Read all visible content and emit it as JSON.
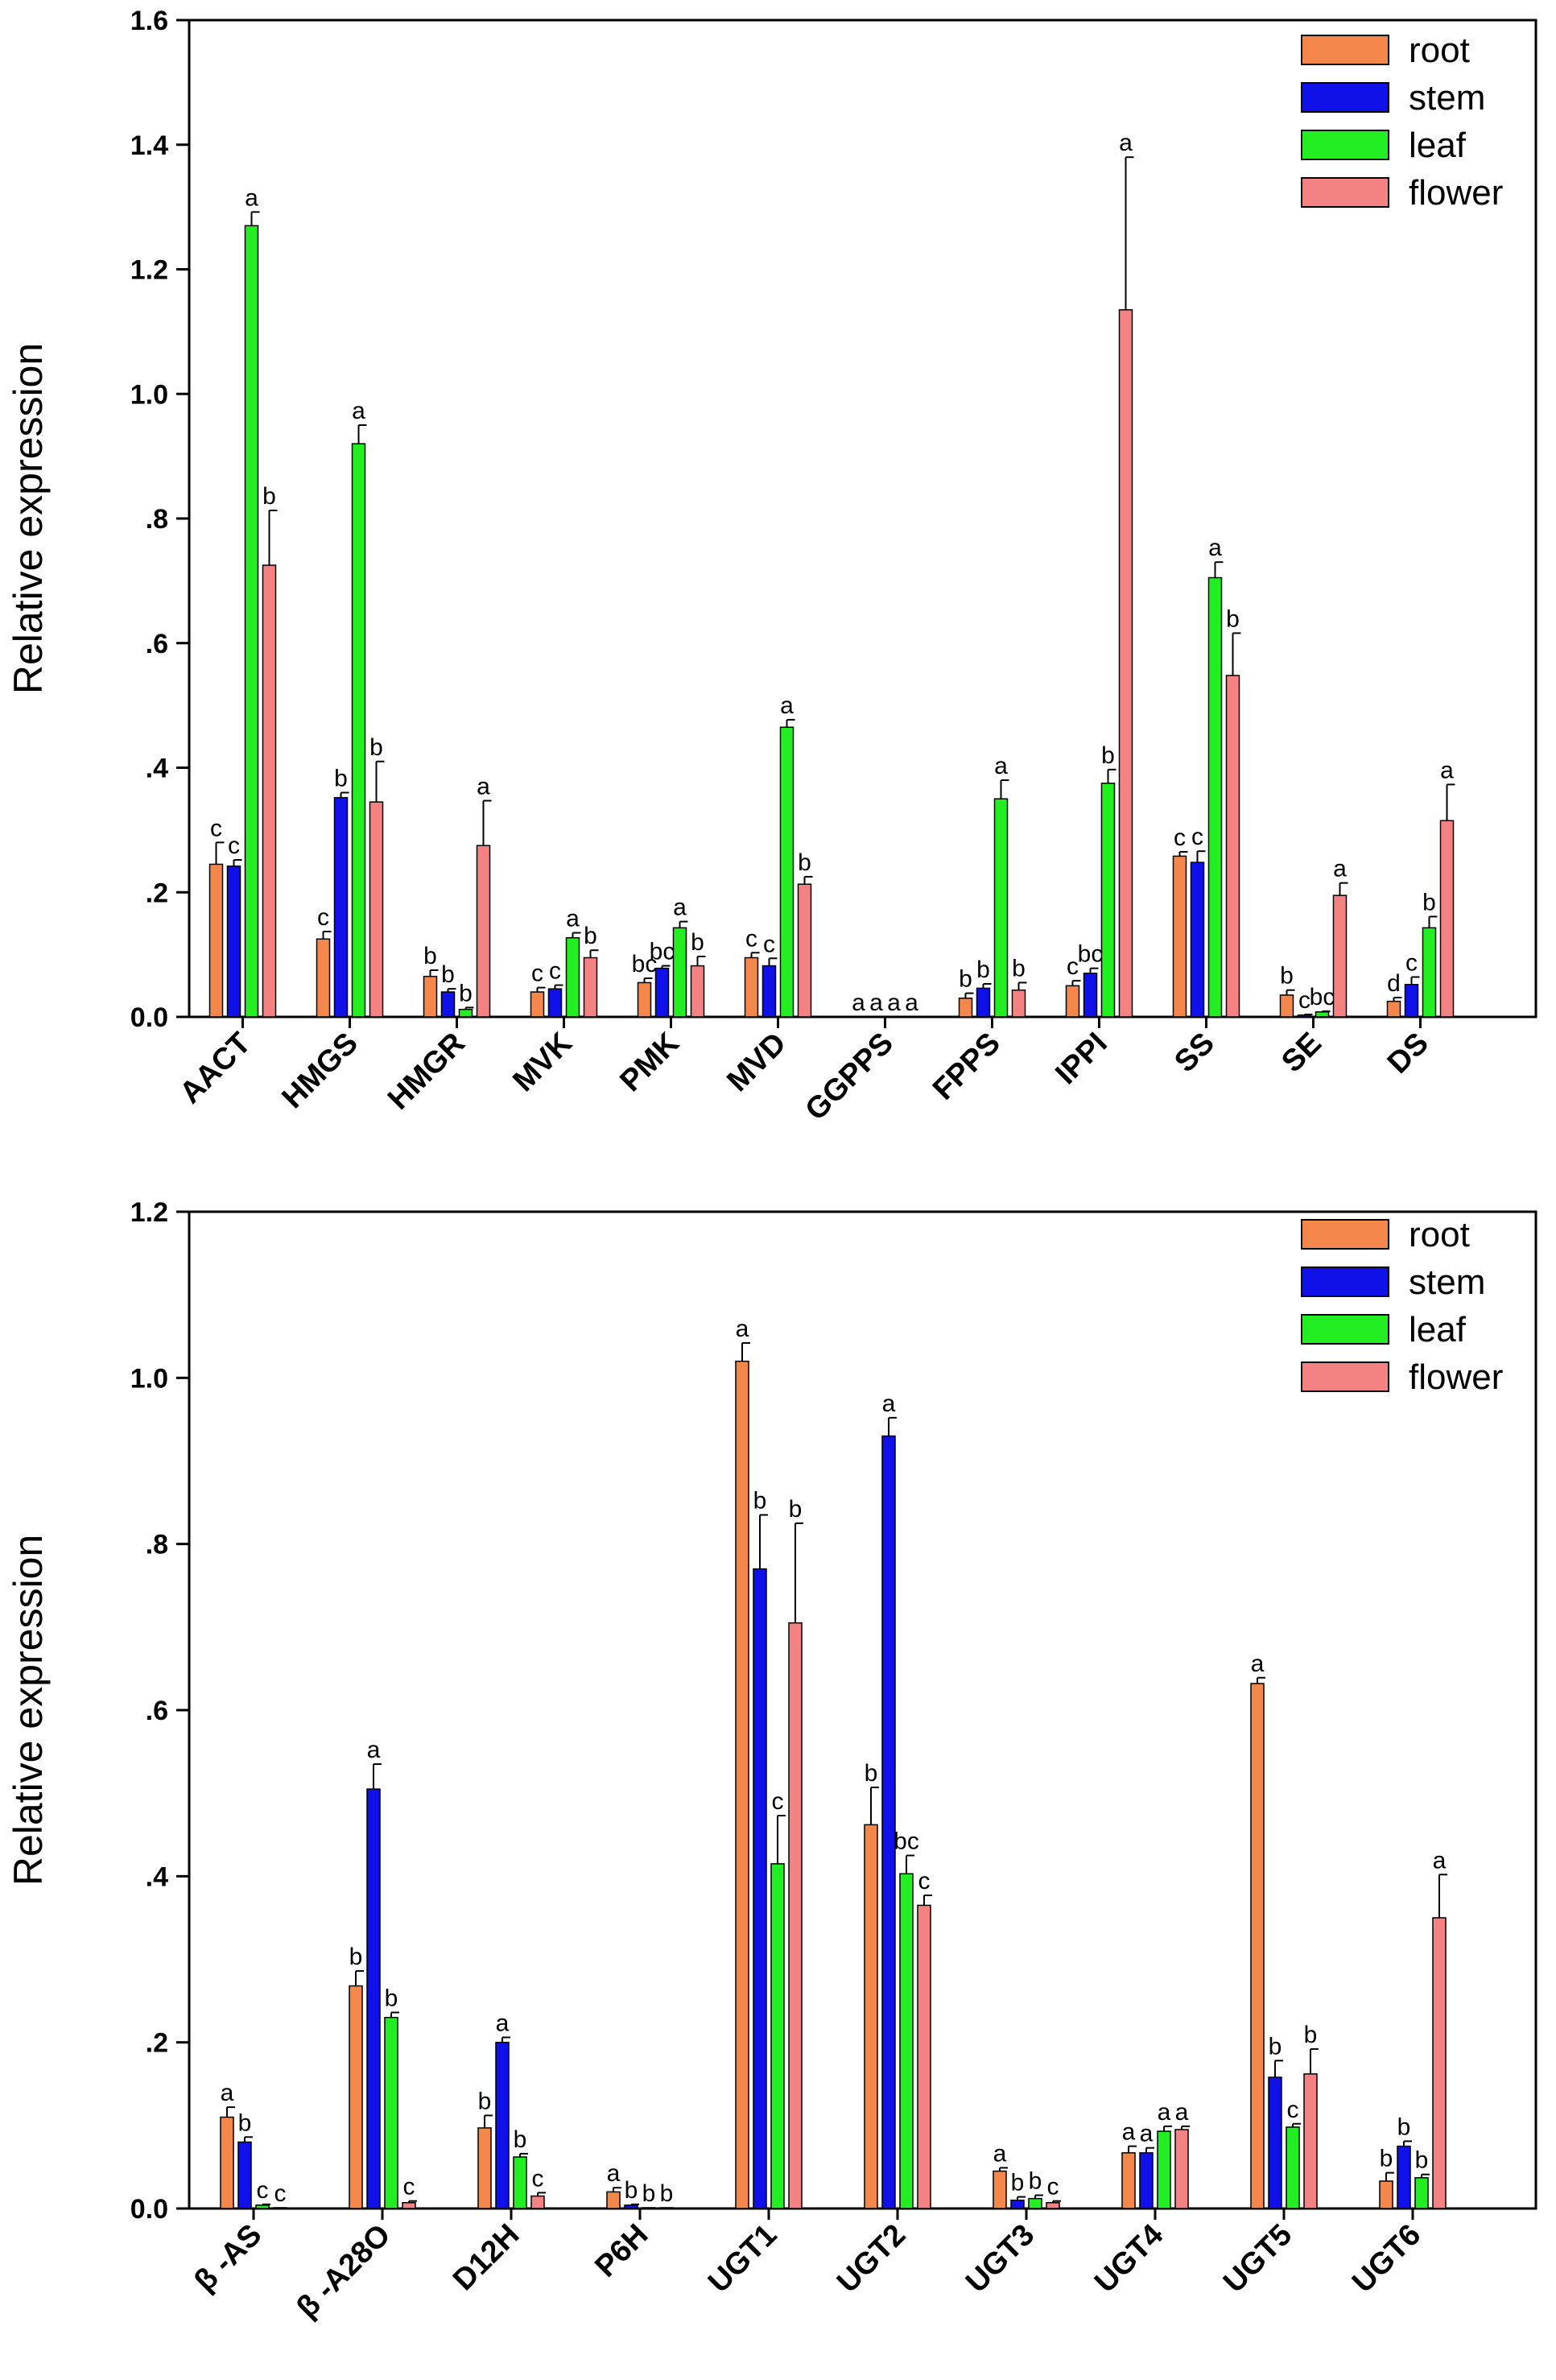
{
  "chart_data": [
    {
      "type": "bar",
      "title": "",
      "xlabel": "",
      "ylabel": "Relative expression",
      "ylim": [
        0,
        1.6
      ],
      "yticks": [
        0.0,
        0.2,
        0.4,
        0.6,
        0.8,
        1.0,
        1.2,
        1.4,
        1.6
      ],
      "ytick_labels": [
        "0.0",
        ".2",
        ".4",
        ".6",
        ".8",
        "1.0",
        "1.2",
        "1.4",
        "1.6"
      ],
      "legend_position": "top-right",
      "categories": [
        "AACT",
        "HMGS",
        "HMGR",
        "MVK",
        "PMK",
        "MVD",
        "GGPPS",
        "FPPS",
        "IPPI",
        "SS",
        "SE",
        "DS"
      ],
      "series": [
        {
          "name": "root",
          "color": "#F4874B",
          "values": [
            0.245,
            0.125,
            0.065,
            0.04,
            0.055,
            0.095,
            0.0,
            0.03,
            0.05,
            0.258,
            0.035,
            0.025
          ],
          "errors": [
            0.035,
            0.012,
            0.01,
            0.007,
            0.007,
            0.008,
            0.0,
            0.008,
            0.008,
            0.007,
            0.008,
            0.006
          ],
          "letters": [
            "c",
            "c",
            "b",
            "c",
            "bc",
            "c",
            "a",
            "b",
            "c",
            "c",
            "b",
            "d"
          ]
        },
        {
          "name": "stem",
          "color": "#1010E8",
          "values": [
            0.242,
            0.352,
            0.04,
            0.045,
            0.078,
            0.082,
            0.0,
            0.046,
            0.07,
            0.248,
            0.003,
            0.052
          ],
          "errors": [
            0.01,
            0.008,
            0.005,
            0.006,
            0.004,
            0.012,
            0.0,
            0.007,
            0.008,
            0.018,
            0.001,
            0.012
          ],
          "letters": [
            "c",
            "b",
            "b",
            "c",
            "bc",
            "c",
            "a",
            "b",
            "bc",
            "c",
            "c",
            "c"
          ]
        },
        {
          "name": "leaf",
          "color": "#22EE22",
          "values": [
            1.27,
            0.92,
            0.012,
            0.127,
            0.143,
            0.465,
            0.0,
            0.35,
            0.375,
            0.705,
            0.008,
            0.143
          ],
          "errors": [
            0.022,
            0.03,
            0.003,
            0.008,
            0.01,
            0.012,
            0.0,
            0.03,
            0.022,
            0.025,
            0.001,
            0.018
          ],
          "letters": [
            "a",
            "a",
            "b",
            "a",
            "a",
            "a",
            "a",
            "a",
            "b",
            "a",
            "bc",
            "b"
          ]
        },
        {
          "name": "flower",
          "color": "#F58282",
          "values": [
            0.725,
            0.345,
            0.275,
            0.095,
            0.082,
            0.213,
            0.0,
            0.043,
            1.135,
            0.548,
            0.195,
            0.315
          ],
          "errors": [
            0.088,
            0.065,
            0.072,
            0.012,
            0.015,
            0.012,
            0.0,
            0.012,
            0.245,
            0.068,
            0.02,
            0.058
          ],
          "letters": [
            "b",
            "b",
            "a",
            "b",
            "b",
            "b",
            "a",
            "b",
            "a",
            "b",
            "a",
            "a"
          ]
        }
      ]
    },
    {
      "type": "bar",
      "title": "",
      "xlabel": "",
      "ylabel": "Relative expression",
      "ylim": [
        0,
        1.2
      ],
      "yticks": [
        0.0,
        0.2,
        0.4,
        0.6,
        0.8,
        1.0,
        1.2
      ],
      "ytick_labels": [
        "0.0",
        ".2",
        ".4",
        ".6",
        ".8",
        "1.0",
        "1.2"
      ],
      "legend_position": "top-right",
      "categories": [
        "β -AS",
        "β -A28O",
        "D12H",
        "P6H",
        "UGT1",
        "UGT2",
        "UGT3",
        "UGT4",
        "UGT5",
        "UGT6"
      ],
      "series": [
        {
          "name": "root",
          "color": "#F4874B",
          "values": [
            0.11,
            0.268,
            0.097,
            0.02,
            1.02,
            0.462,
            0.045,
            0.067,
            0.632,
            0.033
          ],
          "errors": [
            0.012,
            0.018,
            0.015,
            0.005,
            0.022,
            0.045,
            0.004,
            0.008,
            0.007,
            0.01
          ],
          "letters": [
            "a",
            "b",
            "b",
            "a",
            "a",
            "b",
            "a",
            "a",
            "a",
            "b"
          ]
        },
        {
          "name": "stem",
          "color": "#1010E8",
          "values": [
            0.08,
            0.505,
            0.2,
            0.004,
            0.77,
            0.93,
            0.01,
            0.067,
            0.158,
            0.075
          ],
          "errors": [
            0.006,
            0.03,
            0.006,
            0.001,
            0.065,
            0.022,
            0.004,
            0.006,
            0.02,
            0.006
          ],
          "letters": [
            "b",
            "a",
            "a",
            "b",
            "b",
            "a",
            "b",
            "a",
            "b",
            "b"
          ]
        },
        {
          "name": "leaf",
          "color": "#22EE22",
          "values": [
            0.004,
            0.23,
            0.062,
            0.001,
            0.415,
            0.403,
            0.012,
            0.093,
            0.098,
            0.037
          ],
          "errors": [
            0.001,
            0.006,
            0.004,
            0.0,
            0.058,
            0.022,
            0.004,
            0.006,
            0.004,
            0.004
          ],
          "letters": [
            "c",
            "b",
            "b",
            "b",
            "c",
            "bc",
            "b",
            "a",
            "c",
            "b"
          ]
        },
        {
          "name": "flower",
          "color": "#F58282",
          "values": [
            0.001,
            0.007,
            0.015,
            0.001,
            0.705,
            0.365,
            0.007,
            0.095,
            0.162,
            0.35
          ],
          "errors": [
            0.0,
            0.002,
            0.004,
            0.0,
            0.12,
            0.012,
            0.002,
            0.004,
            0.03,
            0.052
          ],
          "letters": [
            "c",
            "c",
            "c",
            "b",
            "b",
            "c",
            "c",
            "a",
            "b",
            "a"
          ]
        }
      ]
    }
  ]
}
